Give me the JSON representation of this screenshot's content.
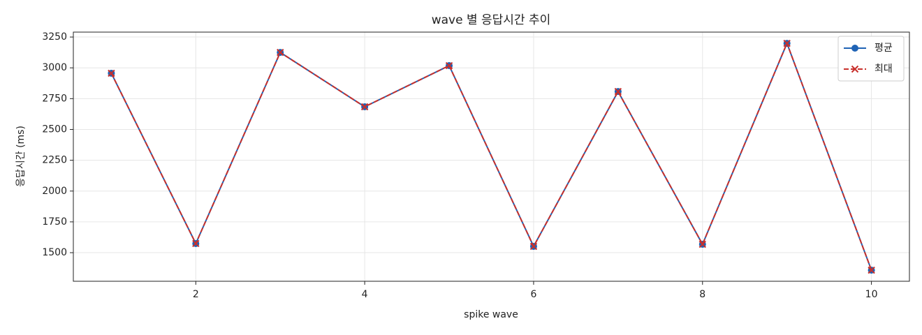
{
  "chart_data": {
    "type": "line",
    "title": "wave 별 응답시간 추이",
    "x_label": "spike wave",
    "y_label": "응답시간 (ms)",
    "x": [
      1,
      2,
      3,
      4,
      5,
      6,
      7,
      8,
      9,
      10
    ],
    "series": [
      {
        "name": "평균",
        "color": "#1f63b5",
        "line_style": "solid",
        "marker": "circle",
        "values": [
          2956,
          1574,
          3125,
          2684,
          3018,
          1551,
          2808,
          1568,
          3199,
          1358
        ]
      },
      {
        "name": "최대",
        "color": "#c8302c",
        "line_style": "dashed",
        "marker": "x",
        "values": [
          2956,
          1574,
          3125,
          2684,
          3018,
          1551,
          2808,
          1568,
          3199,
          1358
        ]
      }
    ],
    "xlim": [
      0.55,
      10.45
    ],
    "ylim": [
      1268,
      3290
    ],
    "xticks": [
      2,
      4,
      6,
      8,
      10
    ],
    "yticks": [
      1500,
      1750,
      2000,
      2250,
      2500,
      2750,
      3000,
      3250
    ],
    "grid": true,
    "legend": "upper right"
  }
}
